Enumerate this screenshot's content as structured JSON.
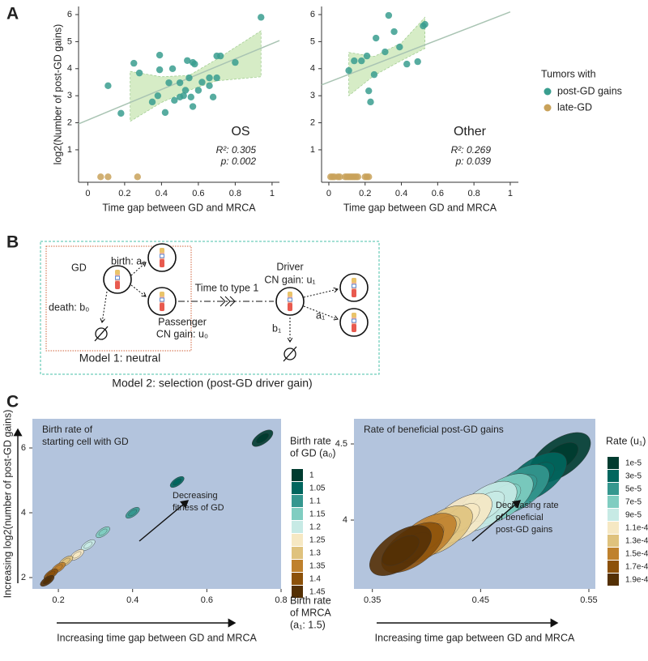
{
  "panel_labels": [
    "A",
    "B",
    "C"
  ],
  "chart_data": [
    {
      "type": "scatter",
      "x_label": "Time gap between GD and MRCA",
      "y_label": "log2(Number of post-GD gains)",
      "xlim": [
        -0.05,
        1.04
      ],
      "ylim": [
        -0.2,
        6.3
      ],
      "xticks": [
        0,
        0.2,
        0.4,
        0.6,
        0.8,
        1
      ],
      "yticks": [
        1,
        2,
        3,
        4,
        5,
        6
      ],
      "annotations": [
        "OS",
        "R²: 0.305",
        "p: 0.002"
      ],
      "fit": {
        "color": "#a9c4b3",
        "x": [
          -0.05,
          1.04
        ],
        "y": [
          1.96,
          5.04
        ]
      },
      "band": {
        "color": "#d6ecc6",
        "x": [
          0.23,
          0.4,
          0.55,
          0.7,
          0.94
        ],
        "lower": [
          2.05,
          2.75,
          3.2,
          3.55,
          3.7
        ],
        "upper": [
          3.9,
          3.7,
          3.75,
          4.35,
          5.4
        ]
      },
      "series": [
        {
          "name": "post-GD gains",
          "color": "#3a9e8f",
          "x": [
            0.11,
            0.18,
            0.25,
            0.28,
            0.35,
            0.38,
            0.39,
            0.39,
            0.42,
            0.44,
            0.46,
            0.47,
            0.5,
            0.5,
            0.52,
            0.53,
            0.54,
            0.55,
            0.56,
            0.57,
            0.58,
            0.57,
            0.6,
            0.62,
            0.66,
            0.66,
            0.68,
            0.7,
            0.72,
            0.7,
            0.8,
            0.94
          ],
          "values": [
            3.37,
            2.35,
            4.2,
            3.84,
            2.77,
            3.0,
            4.5,
            3.96,
            2.38,
            3.48,
            4.0,
            2.83,
            3.48,
            2.95,
            3.0,
            3.2,
            4.3,
            3.66,
            2.95,
            4.23,
            4.17,
            2.6,
            3.2,
            3.5,
            3.37,
            3.66,
            2.95,
            4.47,
            4.47,
            3.66,
            4.23,
            5.9
          ]
        },
        {
          "name": "late-GD",
          "color": "#c9a25a",
          "x": [
            0.07,
            0.11,
            0.27
          ],
          "values": [
            0,
            0,
            0
          ]
        }
      ]
    },
    {
      "type": "scatter",
      "x_label": "Time gap between GD and MRCA",
      "xlim": [
        -0.04,
        1.045
      ],
      "ylim": [
        -0.2,
        6.3
      ],
      "xticks": [
        0,
        0.2,
        0.4,
        0.6,
        0.8,
        1
      ],
      "yticks": [
        1,
        2,
        3,
        4,
        5,
        6
      ],
      "annotations": [
        "Other",
        "R²: 0.269",
        "p: 0.039"
      ],
      "legend_title": "Tumors with",
      "fit": {
        "color": "#a9c4b3",
        "x": [
          -0.04,
          1.0
        ],
        "y": [
          3.4,
          6.1
        ]
      },
      "band": {
        "color": "#d6ecc6",
        "x": [
          0.11,
          0.25,
          0.4,
          0.53
        ],
        "lower": [
          3.0,
          3.75,
          4.3,
          4.75
        ],
        "upper": [
          4.6,
          4.45,
          4.95,
          5.9
        ]
      },
      "series": [
        {
          "name": "post-GD gains",
          "color": "#3a9e8f",
          "x": [
            0.11,
            0.14,
            0.18,
            0.21,
            0.22,
            0.23,
            0.25,
            0.26,
            0.31,
            0.33,
            0.36,
            0.39,
            0.43,
            0.49,
            0.52,
            0.53
          ],
          "values": [
            3.93,
            4.29,
            4.29,
            4.47,
            3.18,
            2.77,
            3.78,
            5.13,
            4.62,
            5.97,
            5.37,
            4.8,
            4.17,
            4.26,
            5.58,
            5.64
          ]
        },
        {
          "name": "late-GD",
          "color": "#c9a25a",
          "x": [
            0.01,
            0.02,
            0.03,
            0.05,
            0.06,
            0.09,
            0.1,
            0.11,
            0.12,
            0.13,
            0.14,
            0.15,
            0.16,
            0.2,
            0.21,
            0.22
          ],
          "values": [
            0,
            0,
            0,
            0,
            0,
            0,
            0,
            0,
            0,
            0,
            0,
            0,
            0,
            0,
            0,
            0
          ]
        }
      ]
    },
    {
      "type": "density",
      "background": "#b3c4dd",
      "title": [
        "Birth rate of",
        "starting cell with GD"
      ],
      "x_label": "Increasing time gap between GD and MRCA",
      "y_label": "Increasing log2(number of post-GD gains)",
      "xlim": [
        0.13,
        0.8
      ],
      "ylim": [
        1.65,
        6.9
      ],
      "xticks": [
        0.2,
        0.4,
        0.6,
        0.8
      ],
      "yticks": [
        2,
        4,
        6
      ],
      "annotations": [
        "Decreasing",
        "fitness of GD"
      ],
      "legend_title": [
        "Birth rate",
        "of GD (a₀)"
      ],
      "legend_footer": [
        "Birth rate",
        "of MRCA",
        "(a₁: 1.5)"
      ],
      "series": [
        {
          "name": "1",
          "color": "#003c30",
          "x": [
            0.75
          ],
          "values": [
            6.3
          ]
        },
        {
          "name": "1.05",
          "color": "#01665e",
          "x": [
            0.52
          ],
          "values": [
            4.95
          ]
        },
        {
          "name": "1.1",
          "color": "#35978f",
          "x": [
            0.4
          ],
          "values": [
            4.0
          ]
        },
        {
          "name": "1.15",
          "color": "#80cdc1",
          "x": [
            0.32
          ],
          "values": [
            3.4
          ]
        },
        {
          "name": "1.2",
          "color": "#c7eae5",
          "x": [
            0.28
          ],
          "values": [
            3.0
          ]
        },
        {
          "name": "1.25",
          "color": "#f6e8c3",
          "x": [
            0.25
          ],
          "values": [
            2.7
          ]
        },
        {
          "name": "1.3",
          "color": "#dfc27d",
          "x": [
            0.22
          ],
          "values": [
            2.5
          ]
        },
        {
          "name": "1.35",
          "color": "#bf812d",
          "x": [
            0.2
          ],
          "values": [
            2.3
          ]
        },
        {
          "name": "1.4",
          "color": "#8c510a",
          "x": [
            0.18
          ],
          "values": [
            2.1
          ]
        },
        {
          "name": "1.45",
          "color": "#543005",
          "x": [
            0.17
          ],
          "values": [
            1.9
          ]
        }
      ]
    },
    {
      "type": "density",
      "background": "#b3c4dd",
      "title": [
        "Rate of beneficial post-GD gains"
      ],
      "x_label": "Increasing time gap between GD and MRCA",
      "xlim": [
        0.333,
        0.556
      ],
      "ylim": [
        3.548,
        4.665
      ],
      "xticks": [
        0.35,
        0.45,
        0.55
      ],
      "yticks": [
        4,
        4.5
      ],
      "annotations": [
        "Decreasing rate",
        "of beneficial",
        "post-GD gains"
      ],
      "legend_title": [
        "Rate (u₁)"
      ],
      "series": [
        {
          "name": "1e-5",
          "color": "#003c30",
          "x": [
            0.523
          ],
          "values": [
            4.41
          ]
        },
        {
          "name": "3e-5",
          "color": "#01665e",
          "x": [
            0.501
          ],
          "values": [
            4.28
          ]
        },
        {
          "name": "5e-5",
          "color": "#35978f",
          "x": [
            0.485
          ],
          "values": [
            4.2
          ]
        },
        {
          "name": "7e-5",
          "color": "#80cdc1",
          "x": [
            0.47
          ],
          "values": [
            4.14
          ]
        },
        {
          "name": "9e-5",
          "color": "#c7eae5",
          "x": [
            0.455
          ],
          "values": [
            4.09
          ]
        },
        {
          "name": "1.1e-4",
          "color": "#f6e8c3",
          "x": [
            0.432
          ],
          "values": [
            4.01
          ]
        },
        {
          "name": "1.3e-4",
          "color": "#dfc27d",
          "x": [
            0.414
          ],
          "values": [
            3.93
          ]
        },
        {
          "name": "1.5e-4",
          "color": "#bf812d",
          "x": [
            0.399
          ],
          "values": [
            3.88
          ]
        },
        {
          "name": "1.7e-4",
          "color": "#8c510a",
          "x": [
            0.387
          ],
          "values": [
            3.82
          ]
        },
        {
          "name": "1.9e-4",
          "color": "#543005",
          "x": [
            0.376
          ],
          "values": [
            3.8
          ]
        }
      ]
    }
  ],
  "diagram": {
    "gd": "GD",
    "birth": "birth: a₀",
    "death": "death: b₀",
    "passenger": "Passenger",
    "passenger_gain": "CN gain: u₀",
    "time": "Time to type 1",
    "driver": "Driver",
    "driver_gain": "CN gain: u₁",
    "a1": "a₁",
    "b1": "b₁",
    "model1": "Model 1: neutral",
    "model2": "Model 2: selection (post-GD driver gain)"
  }
}
